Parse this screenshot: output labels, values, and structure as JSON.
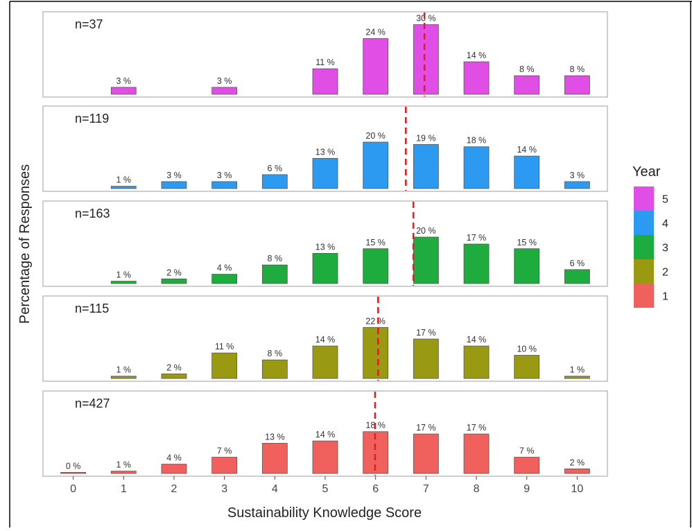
{
  "chart_data": {
    "type": "bar",
    "xlabel": "Sustainability Knowledge Score",
    "ylabel": "Percentage of Responses",
    "x_ticks": [
      "0",
      "1",
      "2",
      "3",
      "4",
      "5",
      "6",
      "7",
      "8",
      "9",
      "10"
    ],
    "xlim": [
      -0.6,
      10.6
    ],
    "legend": {
      "title": "Year",
      "position": "right",
      "entries": [
        {
          "label": "5",
          "color": "#e04ee6"
        },
        {
          "label": "4",
          "color": "#2b9af0"
        },
        {
          "label": "3",
          "color": "#1fac3e"
        },
        {
          "label": "2",
          "color": "#999a12"
        },
        {
          "label": "1",
          "color": "#f0605d"
        }
      ]
    },
    "mean_line_color": "#e02020",
    "panels": [
      {
        "year": "5",
        "n_label": "n=37",
        "color": "#e04ee6",
        "mean": 6.97,
        "bars": [
          {
            "x": 1,
            "value": 3,
            "label": "3 %"
          },
          {
            "x": 3,
            "value": 3,
            "label": "3 %"
          },
          {
            "x": 5,
            "value": 11,
            "label": "11 %"
          },
          {
            "x": 6,
            "value": 24,
            "label": "24 %"
          },
          {
            "x": 7,
            "value": 30,
            "label": "30 %"
          },
          {
            "x": 8,
            "value": 14,
            "label": "14 %"
          },
          {
            "x": 9,
            "value": 8,
            "label": "8 %"
          },
          {
            "x": 10,
            "value": 8,
            "label": "8 %"
          }
        ]
      },
      {
        "year": "4",
        "n_label": "n=119",
        "color": "#2b9af0",
        "mean": 6.6,
        "bars": [
          {
            "x": 1,
            "value": 1,
            "label": "1 %"
          },
          {
            "x": 2,
            "value": 3,
            "label": "3 %"
          },
          {
            "x": 3,
            "value": 3,
            "label": "3 %"
          },
          {
            "x": 4,
            "value": 6,
            "label": "6 %"
          },
          {
            "x": 5,
            "value": 13,
            "label": "13 %"
          },
          {
            "x": 6,
            "value": 20,
            "label": "20 %"
          },
          {
            "x": 7,
            "value": 19,
            "label": "19 %"
          },
          {
            "x": 8,
            "value": 18,
            "label": "18 %"
          },
          {
            "x": 9,
            "value": 14,
            "label": "14 %"
          },
          {
            "x": 10,
            "value": 3,
            "label": "3 %"
          }
        ]
      },
      {
        "year": "3",
        "n_label": "n=163",
        "color": "#1fac3e",
        "mean": 6.75,
        "bars": [
          {
            "x": 1,
            "value": 1,
            "label": "1 %"
          },
          {
            "x": 2,
            "value": 2,
            "label": "2 %"
          },
          {
            "x": 3,
            "value": 4,
            "label": "4 %"
          },
          {
            "x": 4,
            "value": 8,
            "label": "8 %"
          },
          {
            "x": 5,
            "value": 13,
            "label": "13 %"
          },
          {
            "x": 6,
            "value": 15,
            "label": "15 %"
          },
          {
            "x": 7,
            "value": 20,
            "label": "20 %"
          },
          {
            "x": 8,
            "value": 17,
            "label": "17 %"
          },
          {
            "x": 9,
            "value": 15,
            "label": "15 %"
          },
          {
            "x": 10,
            "value": 6,
            "label": "6 %"
          }
        ]
      },
      {
        "year": "2",
        "n_label": "n=115",
        "color": "#999a12",
        "mean": 6.05,
        "bars": [
          {
            "x": 1,
            "value": 1,
            "label": "1 %"
          },
          {
            "x": 2,
            "value": 2,
            "label": "2 %"
          },
          {
            "x": 3,
            "value": 11,
            "label": "11 %"
          },
          {
            "x": 4,
            "value": 8,
            "label": "8 %"
          },
          {
            "x": 5,
            "value": 14,
            "label": "14 %"
          },
          {
            "x": 6,
            "value": 22,
            "label": "22 %"
          },
          {
            "x": 7,
            "value": 17,
            "label": "17 %"
          },
          {
            "x": 8,
            "value": 14,
            "label": "14 %"
          },
          {
            "x": 9,
            "value": 10,
            "label": "10 %"
          },
          {
            "x": 10,
            "value": 1,
            "label": "1 %"
          }
        ]
      },
      {
        "year": "1",
        "n_label": "n=427",
        "color": "#f0605d",
        "mean": 5.99,
        "bars": [
          {
            "x": 0,
            "value": 0,
            "label": "0 %"
          },
          {
            "x": 1,
            "value": 1,
            "label": "1 %"
          },
          {
            "x": 2,
            "value": 4,
            "label": "4 %"
          },
          {
            "x": 3,
            "value": 7,
            "label": "7 %"
          },
          {
            "x": 4,
            "value": 13,
            "label": "13 %"
          },
          {
            "x": 5,
            "value": 14,
            "label": "14 %"
          },
          {
            "x": 6,
            "value": 18,
            "label": "18 %"
          },
          {
            "x": 7,
            "value": 17,
            "label": "17 %"
          },
          {
            "x": 8,
            "value": 17,
            "label": "17 %"
          },
          {
            "x": 9,
            "value": 7,
            "label": "7 %"
          },
          {
            "x": 10,
            "value": 2,
            "label": "2 %"
          }
        ]
      }
    ]
  }
}
